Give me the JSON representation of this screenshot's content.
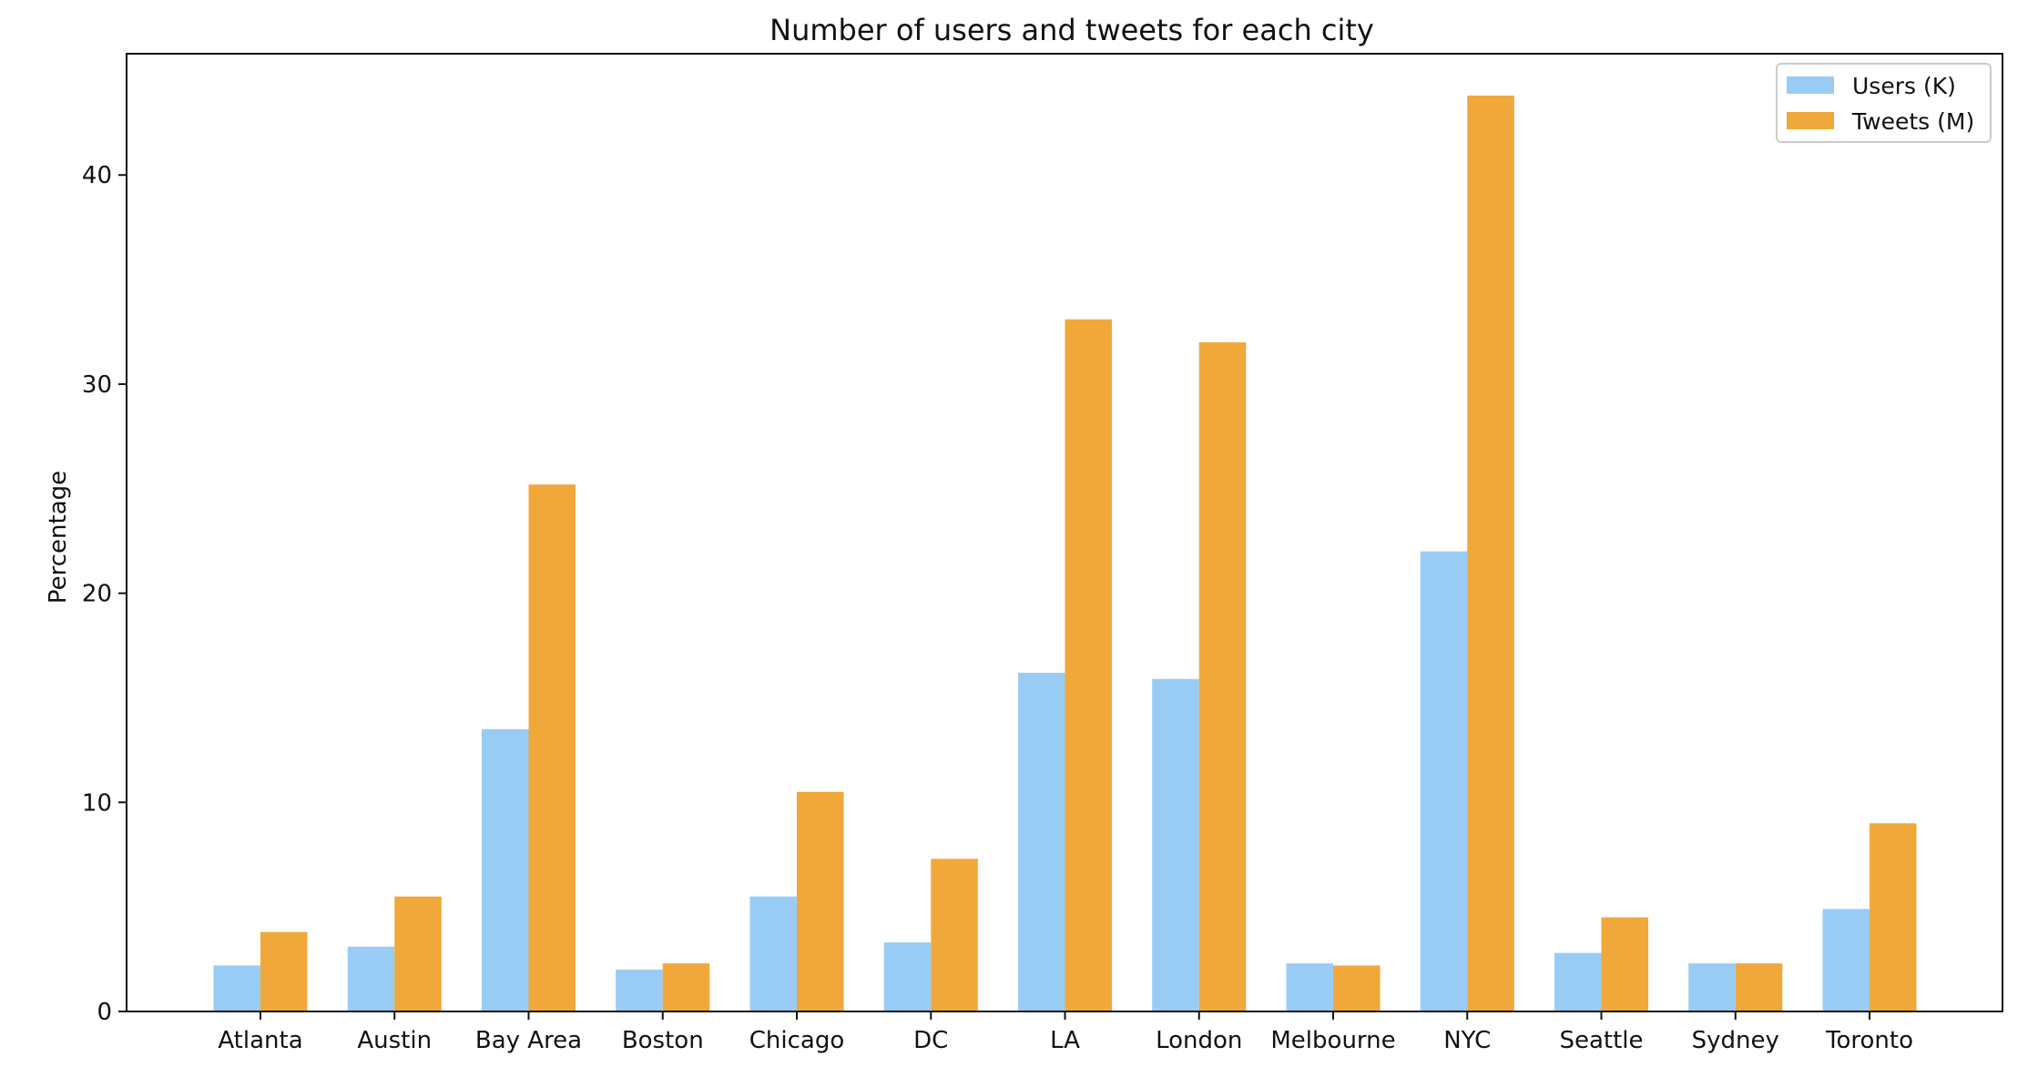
{
  "chart_data": {
    "type": "bar",
    "title": "Number of users and tweets for each city",
    "xlabel": "",
    "ylabel": "Percentage",
    "categories": [
      "Atlanta",
      "Austin",
      "Bay Area",
      "Boston",
      "Chicago",
      "DC",
      "LA",
      "London",
      "Melbourne",
      "NYC",
      "Seattle",
      "Sydney",
      "Toronto"
    ],
    "series": [
      {
        "name": "Users (K)",
        "color": "#99ccf5",
        "values": [
          2.2,
          3.1,
          13.5,
          2.0,
          5.5,
          3.3,
          16.2,
          15.9,
          2.3,
          22.0,
          2.8,
          2.3,
          4.9
        ]
      },
      {
        "name": "Tweets (M)",
        "color": "#f0a83b",
        "values": [
          3.8,
          5.5,
          25.2,
          2.3,
          10.5,
          7.3,
          33.1,
          32.0,
          2.2,
          43.8,
          4.5,
          2.3,
          9.0
        ]
      }
    ],
    "yticks": [
      0,
      10,
      20,
      30,
      40
    ],
    "ylim": [
      0,
      45.8
    ],
    "grid": false,
    "legend_position": "top-right"
  }
}
